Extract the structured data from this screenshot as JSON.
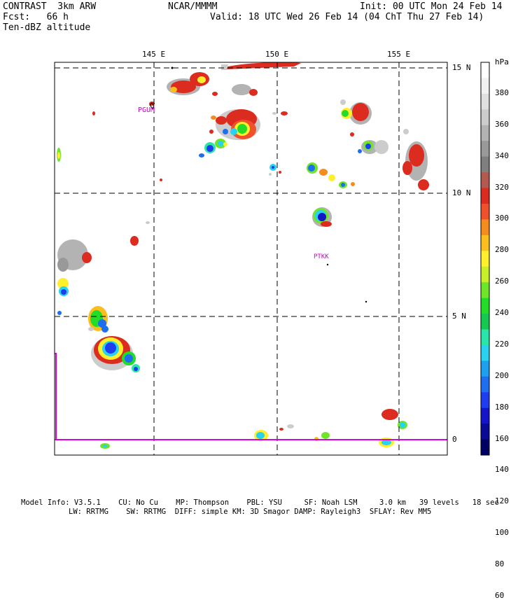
{
  "header": {
    "line1_left": "CONTRAST  3km ARW",
    "line1_mid": "NCAR/MMMM",
    "line1_right": "Init: 00 UTC Mon 24 Feb 14",
    "line2_left": "Fcst:   66 h",
    "line2_right": "Valid: 18 UTC Wed 26 Feb 14 (04 ChT Thu 27 Feb 14)",
    "line3_left": "Ten-dBZ altitude"
  },
  "map": {
    "lon_labels": [
      "145 E",
      "150 E",
      "155 E"
    ],
    "lat_labels": [
      "15 N",
      "10 N",
      "5 N",
      "0"
    ],
    "stations": [
      {
        "name": "PGUM",
        "color": "#cc00cc"
      },
      {
        "name": "PTKK",
        "color": "#cc00cc"
      }
    ],
    "boundary_color": "#dd00dd"
  },
  "colorbar": {
    "unit": "hPa",
    "labels": [
      "380",
      "360",
      "340",
      "320",
      "300",
      "280",
      "260",
      "240",
      "220",
      "200",
      "180",
      "160",
      "140",
      "120",
      "100",
      "80",
      "60"
    ],
    "colors": [
      "#ffffff",
      "#f2f2f2",
      "#e0e0e0",
      "#cccccc",
      "#b3b3b3",
      "#999999",
      "#7f7f7f",
      "#b35a50",
      "#dc2b1f",
      "#f0502a",
      "#f58c1e",
      "#fabe1e",
      "#fff02d",
      "#c8f028",
      "#6ee628",
      "#22dc28",
      "#14c850",
      "#28e6aa",
      "#28d2f0",
      "#1ea0f0",
      "#1e6ef0",
      "#1e3cf0",
      "#1414c8",
      "#0a0a96",
      "#000064"
    ]
  },
  "footer": {
    "line1": "Model Info: V3.5.1    CU: No Cu    MP: Thompson    PBL: YSU     SF: Noah LSM     3.0 km   39 levels   18 sec",
    "line2": "LW: RRTMG    SW: RRTMG  DIFF: simple KM: 3D Smagor DAMP: Rayleigh3  SFLAY: Rev MM5"
  }
}
